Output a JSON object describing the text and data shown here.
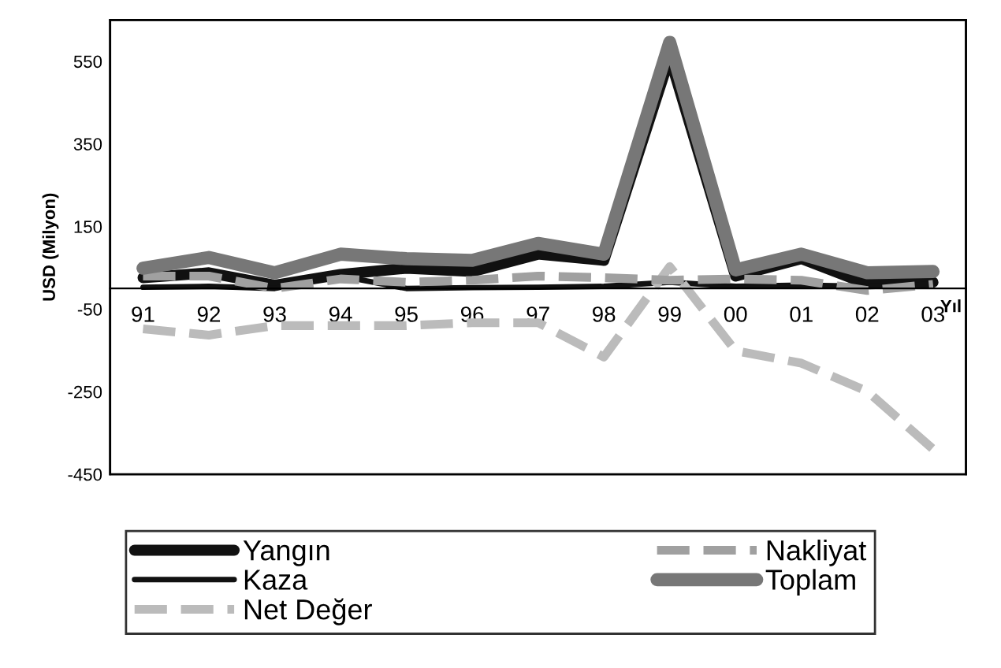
{
  "chart_data": {
    "type": "line",
    "ylabel": "USD (Milyon)",
    "xlabel": "Yıl",
    "categories": [
      "91",
      "92",
      "93",
      "94",
      "95",
      "96",
      "97",
      "98",
      "99",
      "00",
      "01",
      "02",
      "03"
    ],
    "series": [
      {
        "name": "Yangın",
        "color": "#111111",
        "line_style": "solid",
        "values": [
          26,
          38,
          8,
          34,
          49,
          41,
          83,
          68,
          560,
          30,
          72,
          11,
          15
        ]
      },
      {
        "name": "Kaza",
        "color": "#111111",
        "line_style": "solid",
        "values": [
          3,
          5,
          0,
          30,
          0,
          2,
          3,
          5,
          15,
          5,
          8,
          5,
          10
        ]
      },
      {
        "name": "Net Değer",
        "color": "#bbbbbb",
        "line_style": "dashed",
        "values": [
          -98,
          -113,
          -90,
          -90,
          -90,
          -83,
          -83,
          -166,
          53,
          -151,
          -181,
          -249,
          -389
        ]
      },
      {
        "name": "Nakliyat",
        "color": "#a0a0a0",
        "line_style": "dashed",
        "values": [
          30,
          30,
          0,
          23,
          15,
          20,
          30,
          26,
          20,
          23,
          20,
          -5,
          10
        ]
      },
      {
        "name": "Toplam",
        "color": "#777777",
        "line_style": "solid",
        "values": [
          49,
          75,
          38,
          83,
          72,
          68,
          109,
          83,
          596,
          45,
          83,
          38,
          41
        ]
      }
    ],
    "ylim": [
      -450,
      650
    ],
    "yticks": [
      -450,
      -250,
      -50,
      150,
      350,
      550
    ],
    "grid": false,
    "legend": "bottom",
    "marker": "none"
  }
}
